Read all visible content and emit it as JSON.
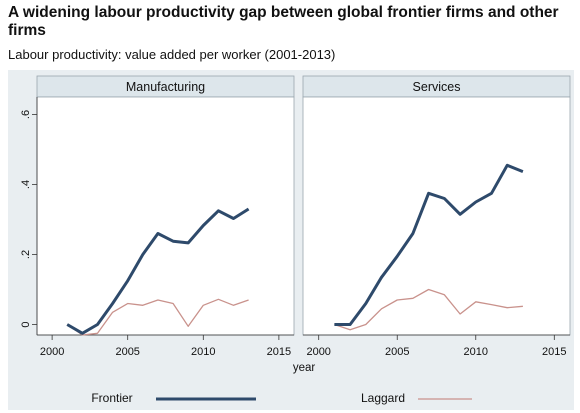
{
  "header": {
    "title": "A widening labour productivity gap between global frontier firms and other firms",
    "subtitle": "Labour productivity: value added per worker (2001-2013)"
  },
  "chart_data": {
    "type": "line",
    "xlabel": "year",
    "ylabel": "",
    "xlim": [
      1999,
      2016
    ],
    "ylim": [
      -0.03,
      0.65
    ],
    "xticks": [
      2000,
      2005,
      2010,
      2015
    ],
    "yticks": [
      0,
      0.2,
      0.4,
      0.6
    ],
    "ytick_labels": [
      "0",
      ".2",
      ".4",
      ".6"
    ],
    "legend_position": "bottom",
    "colors": {
      "Frontier": "#2e4a6b",
      "Laggard": "#c9928c",
      "panel_bg": "#ffffff",
      "strip_bg": "#dde6eb",
      "outer_bg": "#e9eef1"
    },
    "panels": [
      {
        "title": "Manufacturing",
        "x": [
          2001,
          2002,
          2003,
          2004,
          2005,
          2006,
          2007,
          2008,
          2009,
          2010,
          2011,
          2012,
          2013
        ],
        "series": [
          {
            "name": "Frontier",
            "values": [
              0.0,
              -0.025,
              0.0,
              0.06,
              0.125,
              0.2,
              0.26,
              0.238,
              0.233,
              0.283,
              0.325,
              0.303,
              0.33
            ]
          },
          {
            "name": "Laggard",
            "values": [
              0.0,
              -0.03,
              -0.025,
              0.035,
              0.06,
              0.055,
              0.07,
              0.06,
              -0.005,
              0.055,
              0.072,
              0.055,
              0.07
            ]
          }
        ]
      },
      {
        "title": "Services",
        "x": [
          2001,
          2002,
          2003,
          2004,
          2005,
          2006,
          2007,
          2008,
          2009,
          2010,
          2011,
          2012,
          2013
        ],
        "series": [
          {
            "name": "Frontier",
            "values": [
              0.0,
              0.0,
              0.06,
              0.135,
              0.195,
              0.26,
              0.375,
              0.36,
              0.315,
              0.35,
              0.375,
              0.455,
              0.437
            ]
          },
          {
            "name": "Laggard",
            "values": [
              0.0,
              -0.015,
              0.0,
              0.045,
              0.07,
              0.075,
              0.1,
              0.085,
              0.03,
              0.065,
              0.057,
              0.048,
              0.052
            ]
          }
        ]
      }
    ]
  }
}
